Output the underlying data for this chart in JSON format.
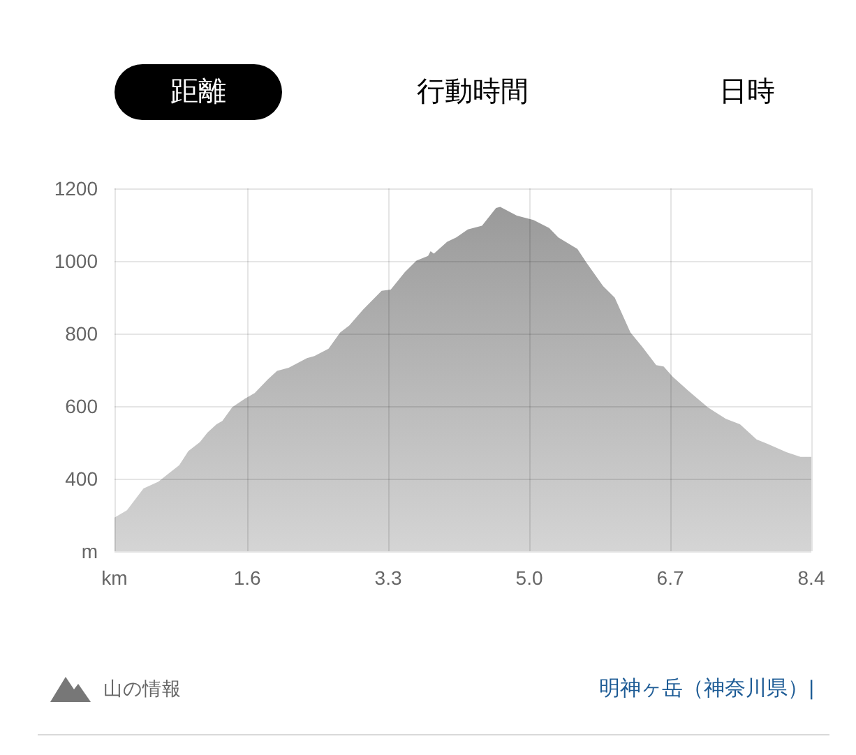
{
  "chart_data": {
    "type": "area",
    "color": "#9a9a9a",
    "x": [
      0,
      0.15,
      0.35,
      0.53,
      0.64,
      0.78,
      0.89,
      1.03,
      1.12,
      1.23,
      1.3,
      1.42,
      1.57,
      1.69,
      1.85,
      1.96,
      2.1,
      2.32,
      2.41,
      2.58,
      2.72,
      2.83,
      3.0,
      3.22,
      3.33,
      3.5,
      3.64,
      3.78,
      3.81,
      3.85,
      4.01,
      4.12,
      4.26,
      4.43,
      4.6,
      4.65,
      4.85,
      5.05,
      5.24,
      5.35,
      5.58,
      5.69,
      5.89,
      6.03,
      6.22,
      6.36,
      6.53,
      6.62,
      6.73,
      6.92,
      7.15,
      7.37,
      7.54,
      7.74,
      7.88,
      8.1,
      8.27,
      8.4
    ],
    "values": [
      293,
      313,
      373,
      392,
      412,
      437,
      476,
      501,
      527,
      550,
      559,
      597,
      620,
      636,
      674,
      697,
      706,
      732,
      738,
      758,
      803,
      822,
      867,
      918,
      921,
      969,
      1001,
      1014,
      1027,
      1020,
      1053,
      1065,
      1087,
      1097,
      1146,
      1149,
      1125,
      1113,
      1091,
      1065,
      1033,
      995,
      931,
      899,
      803,
      764,
      713,
      709,
      681,
      642,
      597,
      565,
      550,
      508,
      495,
      473,
      460,
      460
    ],
    "xlim": [
      0,
      8.4
    ],
    "xticks": [
      {
        "value": 0,
        "label": "km"
      },
      1.6,
      3.3,
      {
        "value": 5,
        "label": "5.0"
      },
      6.7,
      8.4
    ],
    "ylim": [
      200,
      1200
    ],
    "yticks": [
      {
        "value": 200,
        "label": "m"
      },
      400,
      600,
      800,
      1000,
      1200
    ],
    "grid": true,
    "annotations": [
      "距離",
      "行動時間",
      "日時",
      "山の情報",
      "明神ヶ岳（神奈川県）|"
    ]
  }
}
